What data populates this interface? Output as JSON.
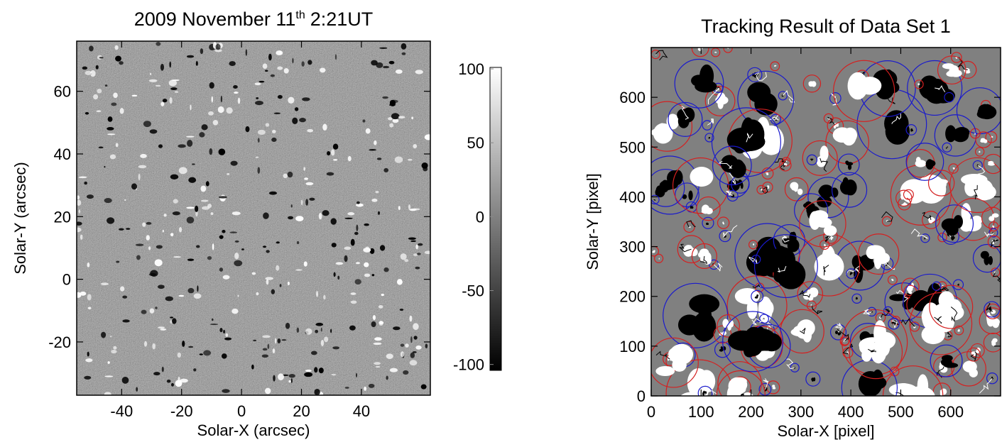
{
  "chart_data": [
    {
      "type": "image",
      "title": {
        "text": "2009 November 11",
        "superscript": "th",
        "suffix": "2:21UT"
      },
      "xlabel": "Solar-X (arcsec)",
      "ylabel": "Solar-Y (arcsec)",
      "xlim": [
        -55,
        63
      ],
      "xticks": [
        -40,
        -20,
        0,
        20,
        40
      ],
      "ylim": [
        -37,
        76
      ],
      "yticks": [
        -20,
        0,
        20,
        40,
        60
      ],
      "colorbar": {
        "lim": [
          -104,
          101
        ],
        "ticks": [
          -100,
          -50,
          0,
          50,
          100
        ]
      }
    },
    {
      "type": "tracking",
      "title": "Tracking Result of Data Set 1",
      "xlabel": "Solar-X [pixel]",
      "ylabel": "Solar-Y [pixel]",
      "xlim": [
        0,
        700
      ],
      "xticks": [
        0,
        100,
        200,
        300,
        400,
        500,
        600
      ],
      "ylim": [
        0,
        700
      ],
      "yticks": [
        0,
        100,
        200,
        300,
        400,
        500,
        600
      ]
    }
  ]
}
